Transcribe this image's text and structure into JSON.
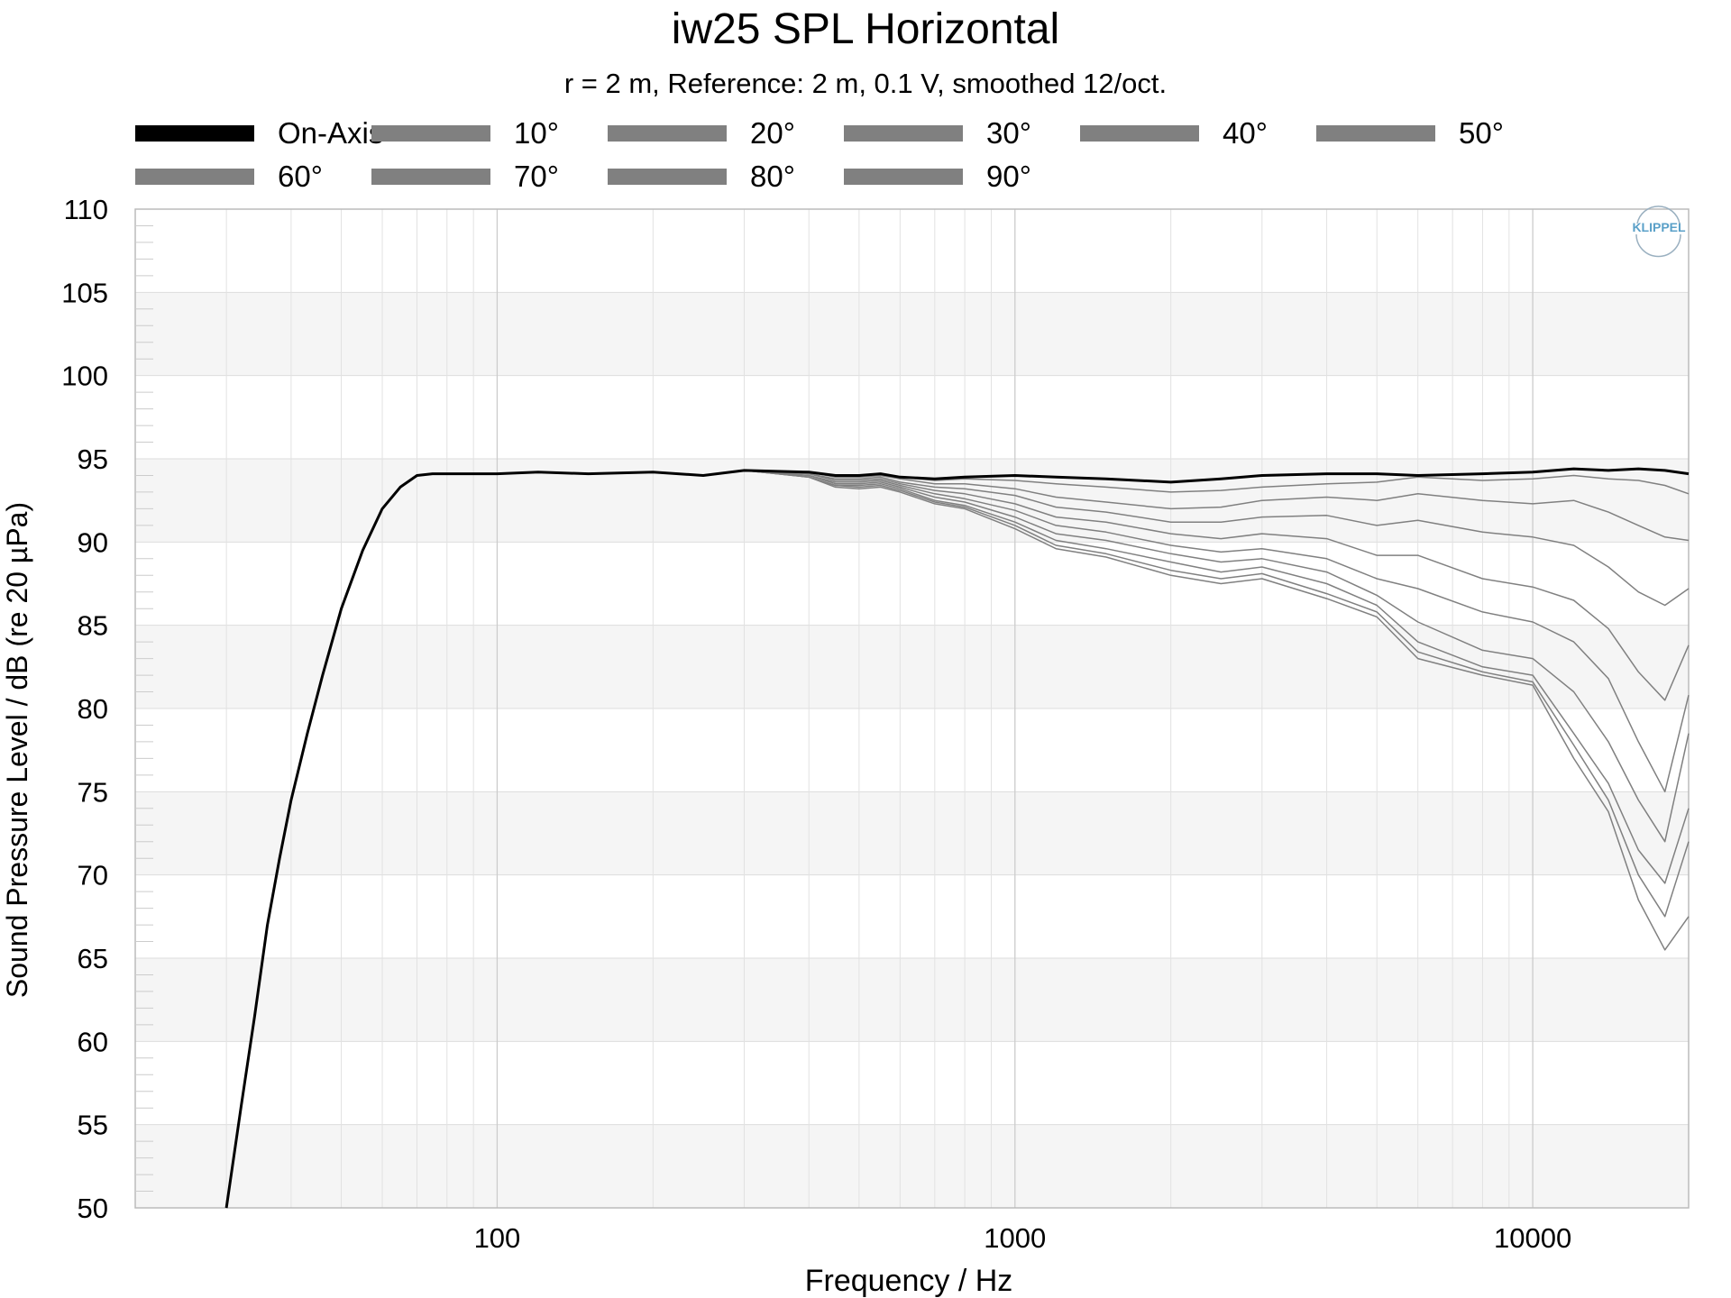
{
  "chart_data": {
    "type": "line",
    "title": "iw25 SPL Horizontal",
    "subtitle": "r = 2 m,  Reference: 2 m, 0.1 V, smoothed 12/oct.",
    "xlabel": "Frequency / Hz",
    "ylabel": "Sound Pressure Level / dB (re 20 µPa)",
    "x_scale": "log",
    "xlim": [
      20,
      20000
    ],
    "ylim": [
      50,
      110
    ],
    "x_ticks": [
      100,
      1000,
      10000
    ],
    "x_tick_labels": [
      "100",
      "1000",
      "10000"
    ],
    "y_ticks": [
      50,
      55,
      60,
      65,
      70,
      75,
      80,
      85,
      90,
      95,
      100,
      105,
      110
    ],
    "y_tick_labels": [
      "50",
      "55",
      "60",
      "65",
      "70",
      "75",
      "80",
      "85",
      "90",
      "95",
      "100",
      "105",
      "110"
    ],
    "grid": true,
    "legend_position": "top",
    "watermark": "KLIPPEL",
    "colors": {
      "on_axis": "#000000",
      "off_axis": "#808080",
      "band": "#f5f5f5",
      "grid": "#dddddd"
    },
    "common_low_freq": {
      "x": [
        30,
        32,
        34,
        36,
        38,
        40,
        43,
        46,
        50,
        55,
        60,
        65,
        70,
        75,
        80
      ],
      "y": [
        50,
        56,
        61.5,
        67,
        71,
        74.5,
        78.5,
        82,
        86,
        89.5,
        92,
        93.3,
        94.0,
        94.1,
        94.1
      ]
    },
    "x": [
      80,
      100,
      120,
      150,
      200,
      250,
      300,
      400,
      450,
      500,
      550,
      600,
      700,
      800,
      1000,
      1200,
      1500,
      2000,
      2500,
      3000,
      4000,
      5000,
      6000,
      8000,
      10000,
      12000,
      14000,
      16000,
      18000,
      20000
    ],
    "series": [
      {
        "name": "On-Axis",
        "values": [
          94.1,
          94.1,
          94.2,
          94.1,
          94.2,
          94.0,
          94.3,
          94.2,
          94.0,
          94.0,
          94.1,
          93.9,
          93.8,
          93.9,
          94.0,
          93.9,
          93.8,
          93.6,
          93.8,
          94.0,
          94.1,
          94.1,
          94.0,
          94.1,
          94.2,
          94.4,
          94.3,
          94.4,
          94.3,
          94.1
        ]
      },
      {
        "name": "10°",
        "values": [
          94.1,
          94.1,
          94.2,
          94.1,
          94.2,
          94.0,
          94.3,
          94.2,
          94.0,
          94.0,
          94.1,
          93.9,
          93.7,
          93.8,
          93.7,
          93.5,
          93.3,
          93.0,
          93.1,
          93.3,
          93.5,
          93.6,
          93.9,
          93.7,
          93.8,
          94.0,
          93.8,
          93.7,
          93.4,
          92.9
        ]
      },
      {
        "name": "20°",
        "values": [
          94.1,
          94.1,
          94.2,
          94.1,
          94.2,
          94.0,
          94.3,
          94.2,
          93.9,
          93.9,
          94.0,
          93.8,
          93.5,
          93.5,
          93.2,
          92.7,
          92.4,
          92.0,
          92.1,
          92.5,
          92.7,
          92.5,
          92.9,
          92.5,
          92.3,
          92.5,
          91.8,
          91.0,
          90.3,
          90.1
        ]
      },
      {
        "name": "30°",
        "values": [
          94.1,
          94.1,
          94.2,
          94.1,
          94.2,
          94.0,
          94.3,
          94.1,
          93.8,
          93.8,
          93.9,
          93.6,
          93.3,
          93.2,
          92.8,
          92.1,
          91.8,
          91.2,
          91.2,
          91.5,
          91.6,
          91.0,
          91.3,
          90.6,
          90.3,
          89.8,
          88.5,
          87.0,
          86.2,
          87.2
        ]
      },
      {
        "name": "40°",
        "values": [
          94.1,
          94.1,
          94.2,
          94.1,
          94.2,
          94.0,
          94.3,
          94.1,
          93.7,
          93.7,
          93.8,
          93.5,
          93.1,
          92.9,
          92.3,
          91.5,
          91.2,
          90.5,
          90.2,
          90.5,
          90.2,
          89.2,
          89.2,
          87.8,
          87.3,
          86.5,
          84.8,
          82.2,
          80.5,
          83.8
        ]
      },
      {
        "name": "50°",
        "values": [
          94.1,
          94.1,
          94.2,
          94.1,
          94.2,
          94.0,
          94.3,
          94.0,
          93.6,
          93.6,
          93.7,
          93.4,
          92.9,
          92.6,
          91.9,
          91.0,
          90.6,
          89.8,
          89.4,
          89.6,
          89.0,
          87.8,
          87.2,
          85.8,
          85.2,
          84.0,
          81.8,
          78.0,
          75.0,
          80.8
        ]
      },
      {
        "name": "60°",
        "values": [
          94.1,
          94.1,
          94.2,
          94.1,
          94.2,
          94.0,
          94.3,
          94.0,
          93.5,
          93.5,
          93.6,
          93.3,
          92.7,
          92.4,
          91.5,
          90.5,
          90.1,
          89.3,
          88.8,
          89.0,
          88.2,
          86.8,
          85.2,
          83.5,
          83.0,
          81.0,
          78.0,
          74.5,
          72.0,
          78.5
        ]
      },
      {
        "name": "70°",
        "values": [
          94.1,
          94.1,
          94.2,
          94.1,
          94.2,
          94.0,
          94.3,
          93.9,
          93.4,
          93.4,
          93.5,
          93.2,
          92.5,
          92.2,
          91.2,
          90.1,
          89.6,
          88.8,
          88.2,
          88.5,
          87.5,
          86.2,
          84.0,
          82.5,
          82.0,
          78.5,
          75.5,
          71.5,
          69.5,
          74.0
        ]
      },
      {
        "name": "80°",
        "values": [
          94.1,
          94.1,
          94.2,
          94.1,
          94.2,
          94.0,
          94.3,
          93.9,
          93.4,
          93.3,
          93.4,
          93.1,
          92.4,
          92.1,
          91.0,
          89.8,
          89.3,
          88.3,
          87.8,
          88.1,
          86.9,
          85.8,
          83.4,
          82.2,
          81.6,
          77.8,
          74.5,
          70.0,
          67.5,
          72.0
        ]
      },
      {
        "name": "90°",
        "values": [
          94.1,
          94.1,
          94.2,
          94.1,
          94.2,
          94.0,
          94.3,
          93.9,
          93.3,
          93.2,
          93.3,
          93.0,
          92.3,
          92.0,
          90.8,
          89.6,
          89.1,
          88.0,
          87.5,
          87.8,
          86.6,
          85.5,
          83.0,
          82.0,
          81.4,
          77.0,
          73.8,
          68.5,
          65.5,
          67.5
        ]
      }
    ]
  }
}
